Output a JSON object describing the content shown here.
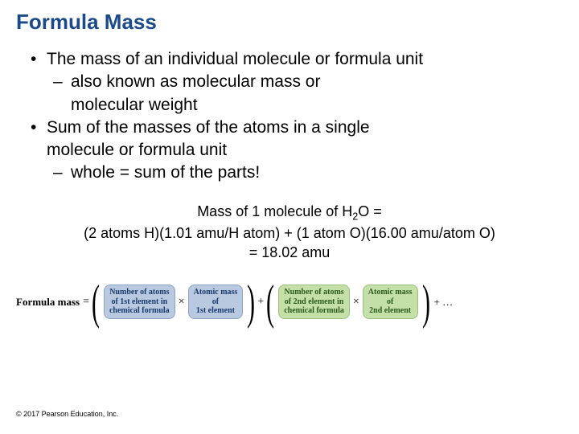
{
  "title": "Formula Mass",
  "bullets": {
    "b1": "The mass of an individual molecule or formula unit",
    "b1s1a": "also known as molecular mass or",
    "b1s1b": "molecular weight",
    "b2a": "Sum of the masses of the atoms in a single",
    "b2b": "molecule or formula unit",
    "b2s1": "whole = sum of the parts!"
  },
  "calc": {
    "line1_pre": "Mass of 1 molecule of H",
    "line1_sub": "2",
    "line1_post": "O =",
    "line2": "(2 atoms H)(1.01 amu/H atom) + (1 atom O)(16.00 amu/atom O)",
    "line3": "= 18.02 amu"
  },
  "formula": {
    "label": "Formula mass",
    "eq": "=",
    "times": "×",
    "plus": "+",
    "lparen": "(",
    "rparen": ")",
    "trail": "+ …",
    "pill1": {
      "l1": "Number of atoms",
      "l2": "of 1st element in",
      "l3": "chemical formula"
    },
    "pill2": {
      "l1": "Atomic mass",
      "l2": "of",
      "l3": "1st element"
    },
    "pill3": {
      "l1": "Number of atoms",
      "l2": "of 2nd element in",
      "l3": "chemical formula"
    },
    "pill4": {
      "l1": "Atomic mass",
      "l2": "of",
      "l3": "2nd element"
    }
  },
  "copyright": "© 2017 Pearson Education, Inc."
}
